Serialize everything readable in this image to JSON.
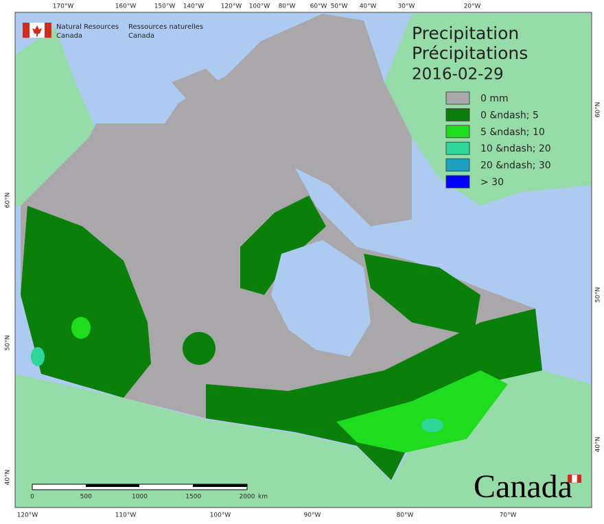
{
  "header": {
    "org_en_1": "Natural Resources",
    "org_en_2": "Canada",
    "org_fr_1": "Ressources naturelles",
    "org_fr_2": "Canada"
  },
  "title": {
    "en": "Precipitation",
    "fr": "Précipitations",
    "date": "2016-02-29"
  },
  "legend": [
    {
      "label": "0 mm",
      "color": "#a9a7a9"
    },
    {
      "label": "0 &ndash; 5",
      "color": "#0a800a"
    },
    {
      "label": "5 &ndash; 10",
      "color": "#1fdc1f"
    },
    {
      "label": "10 &ndash; 20",
      "color": "#2fd69a"
    },
    {
      "label": "20 &ndash; 30",
      "color": "#20a0c0"
    },
    {
      "label": "> 30",
      "color": "#0000ff"
    }
  ],
  "graticule": {
    "top": [
      "170°W",
      "160°W",
      "150°W",
      "140°W",
      "120°W",
      "100°W",
      "80°W",
      "60°W",
      "50°W",
      "40°W",
      "30°W",
      "20°W"
    ],
    "bottom": [
      "120°W",
      "110°W",
      "100°W",
      "90°W",
      "80°W",
      "70°W"
    ],
    "left": [
      "60°N",
      "50°N",
      "40°N"
    ],
    "right": [
      "60°N",
      "50°N",
      "40°N"
    ]
  },
  "scale_bar": {
    "labels": [
      "0",
      "500",
      "1000",
      "1500",
      "2000"
    ],
    "unit": "km"
  },
  "wordmark": "Canada"
}
